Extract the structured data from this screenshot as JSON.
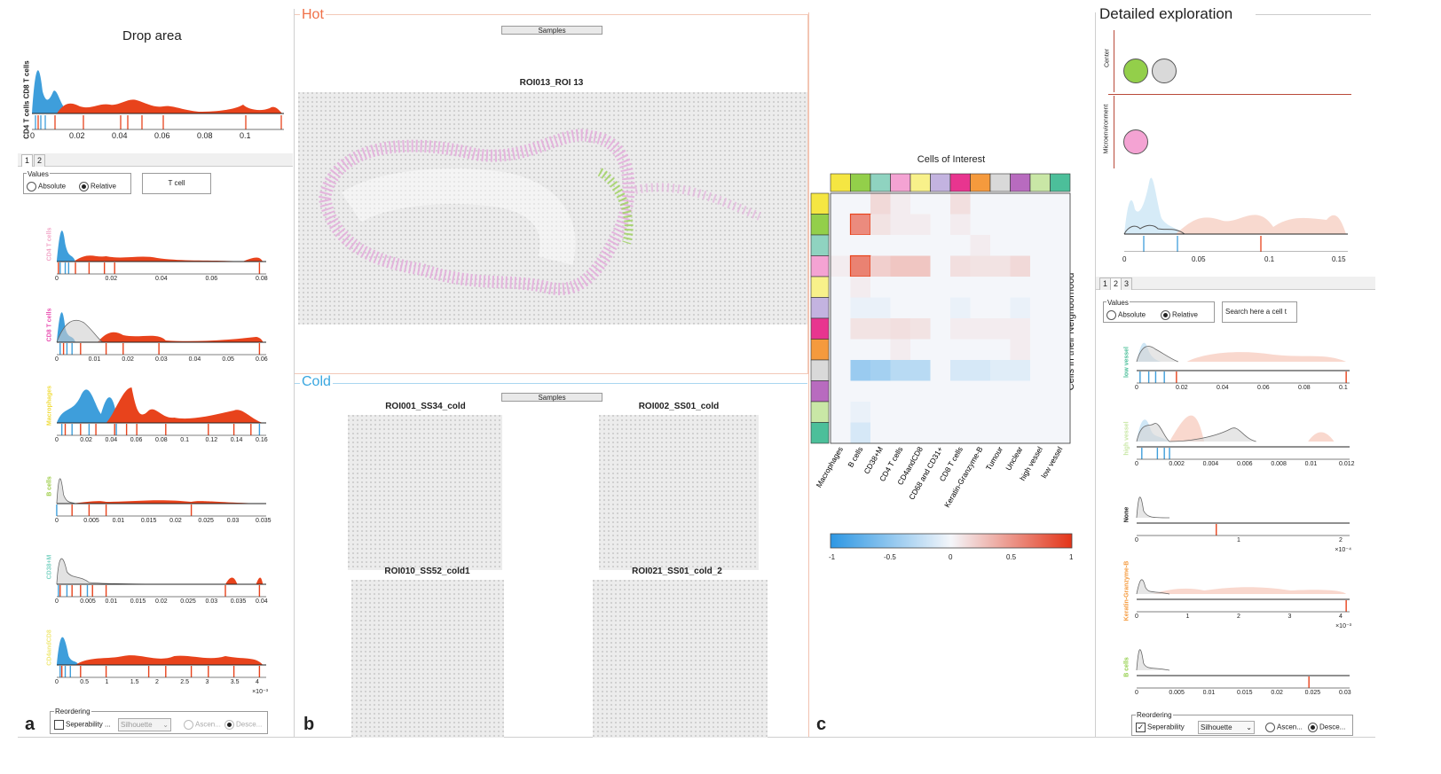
{
  "panel_a": {
    "letter": "a",
    "drop_area_title": "Drop area",
    "top_plot_label": "CD4 T cells CD8 T cells",
    "top_ticks": [
      "0",
      "0.02",
      "0.04",
      "0.06",
      "0.08",
      "0.1"
    ],
    "tabs": [
      "1",
      "2"
    ],
    "values_label": "Values",
    "absolute_label": "Absolute",
    "relative_label": "Relative",
    "selected_value_mode": "Relative",
    "cell_field": "T cell",
    "plots": [
      {
        "label": "CD4 T cells",
        "label_color": "#f2a7c8",
        "ticks": [
          "0",
          "0.02",
          "0.04",
          "0.06",
          "0.08"
        ]
      },
      {
        "label": "CD8 T cells",
        "label_color": "#e94fb1",
        "ticks": [
          "0",
          "0.01",
          "0.02",
          "0.03",
          "0.04",
          "0.05",
          "0.06"
        ]
      },
      {
        "label": "Macrophages",
        "label_color": "#f0dc3c",
        "ticks": [
          "0",
          "0.02",
          "0.04",
          "0.06",
          "0.08",
          "0.1",
          "0.12",
          "0.14",
          "0.16"
        ]
      },
      {
        "label": "B cells",
        "label_color": "#9ccc45",
        "ticks": [
          "0",
          "0.005",
          "0.01",
          "0.015",
          "0.02",
          "0.025",
          "0.03",
          "0.035"
        ]
      },
      {
        "label": "CD38+M",
        "label_color": "#7fd4c5",
        "ticks": [
          "0",
          "0.005",
          "0.01",
          "0.015",
          "0.02",
          "0.025",
          "0.03",
          "0.035",
          "0.04"
        ]
      },
      {
        "label": "CD4andCD8",
        "label_color": "#f0e878",
        "ticks": [
          "0",
          "0.5",
          "1",
          "1.5",
          "2",
          "2.5",
          "3",
          "3.5",
          "4"
        ]
      }
    ],
    "last_plot_exponent": "×10⁻³",
    "reordering_label": "Reordering",
    "separability_label": "Seperability ...",
    "separability_checked": false,
    "measure_select": "Silhouette",
    "ascending_label": "Ascen...",
    "descending_label": "Desce..."
  },
  "panel_b": {
    "letter": "b",
    "hot_label": "Hot",
    "hot_color": "#f07048",
    "cold_label": "Cold",
    "cold_color": "#3aa7e0",
    "samples_button": "Samples",
    "hot_roi_title": "ROI013_ROI 13",
    "cold_roi_titles": [
      "ROI001_SS34_cold",
      "ROI002_SS01_cold",
      "ROI010_SS52_cold1",
      "ROI021_SS01_cold_2"
    ]
  },
  "panel_c": {
    "letter": "c",
    "heatmap_title": "Cells of Interest",
    "y_axis_label": "Cells in their Neighborhood",
    "column_labels": [
      "Macrophages",
      "B cells",
      "CD38+M",
      "CD4 T cells",
      "CD4andCD8",
      "CD68 and CD31+",
      "CD8 T cells",
      "Keratin-Granzyme-B",
      "Tumour",
      "Unclear",
      "high vessel",
      "low vessel"
    ],
    "category_colors": [
      "#f5e642",
      "#93cf4a",
      "#8fd3c0",
      "#f4a3d3",
      "#f8f18a",
      "#c3b3e0",
      "#e8358f",
      "#f59a3d",
      "#d9d9d9",
      "#b86bbf",
      "#c9e7a6",
      "#4cbf9a"
    ],
    "colorbar_ticks": [
      "-1",
      "-0.5",
      "0",
      "0.5",
      "1"
    ],
    "heatmap_values": [
      [
        0,
        0,
        0.15,
        0.05,
        0,
        0,
        0.12,
        0,
        0,
        0,
        0,
        0
      ],
      [
        0,
        0.55,
        0.1,
        0.05,
        0.05,
        0,
        0.05,
        0,
        0,
        0,
        0,
        0
      ],
      [
        0,
        0,
        0,
        0,
        0,
        0,
        0,
        0.05,
        0,
        0,
        0,
        0
      ],
      [
        0.05,
        0.6,
        0.2,
        0.25,
        0.25,
        0,
        0.12,
        0.1,
        0.1,
        0.15,
        0,
        0
      ],
      [
        0,
        0.05,
        0,
        0,
        0,
        0,
        0,
        0,
        0,
        0,
        0,
        0
      ],
      [
        0,
        -0.05,
        -0.05,
        0,
        0,
        0,
        -0.05,
        0,
        0,
        -0.05,
        0,
        0
      ],
      [
        0,
        0.1,
        0.1,
        0.12,
        0.1,
        0,
        0.05,
        0.05,
        0.05,
        0.05,
        0,
        0
      ],
      [
        0,
        0,
        0,
        0.05,
        0,
        0,
        0,
        0,
        0,
        0.05,
        0,
        0
      ],
      [
        0,
        -0.45,
        -0.4,
        -0.3,
        -0.3,
        0,
        -0.15,
        -0.15,
        -0.1,
        -0.1,
        0,
        0
      ],
      [
        0,
        0,
        0,
        0,
        0,
        0,
        0,
        0,
        0,
        0,
        0,
        0
      ],
      [
        0,
        -0.05,
        0,
        0,
        0,
        0,
        0,
        0,
        0,
        0,
        0,
        0
      ],
      [
        0,
        -0.15,
        0,
        0,
        0,
        0,
        0,
        0,
        0,
        0,
        0,
        0
      ]
    ]
  },
  "panel_d": {
    "title": "Detailed exploration",
    "center_label": "Center",
    "microenvironment_label": "Microenvironment",
    "center_colors": [
      "#93cf4a",
      "#d9d9d9"
    ],
    "micro_colors": [
      "#f4a3d3"
    ],
    "overview_ticks": [
      "0",
      "0.05",
      "0.1",
      "0.15"
    ],
    "tabs": [
      "1",
      "2",
      "3"
    ],
    "values_label": "Values",
    "absolute_label": "Absolute",
    "relative_label": "Relative",
    "selected_value_mode": "Relative",
    "search_placeholder": "Search here a cell t",
    "plots": [
      {
        "label": "low vessel",
        "label_color": "#4cbf9a",
        "ticks": [
          "0",
          "0.02",
          "0.04",
          "0.06",
          "0.08",
          "0.1"
        ],
        "exponent": ""
      },
      {
        "label": "high vessel",
        "label_color": "#c9e7a6",
        "ticks": [
          "0",
          "0.002",
          "0.004",
          "0.006",
          "0.008",
          "0.01",
          "0.012"
        ],
        "exponent": ""
      },
      {
        "label": "None",
        "label_color": "#222222",
        "ticks": [
          "0",
          "1",
          "2"
        ],
        "exponent": "×10⁻⁴"
      },
      {
        "label": "Keratin-Granzyme-B",
        "label_color": "#f59a3d",
        "ticks": [
          "0",
          "1",
          "2",
          "3",
          "4"
        ],
        "exponent": "×10⁻³"
      },
      {
        "label": "B cells",
        "label_color": "#93cf4a",
        "ticks": [
          "0",
          "0.005",
          "0.01",
          "0.015",
          "0.02",
          "0.025",
          "0.03"
        ],
        "exponent": ""
      }
    ],
    "reordering_label": "Reordering",
    "separability_label": "Seperability",
    "separability_checked": true,
    "measure_select": "Silhouette",
    "ascending_label": "Ascen...",
    "descending_label": "Desce..."
  }
}
